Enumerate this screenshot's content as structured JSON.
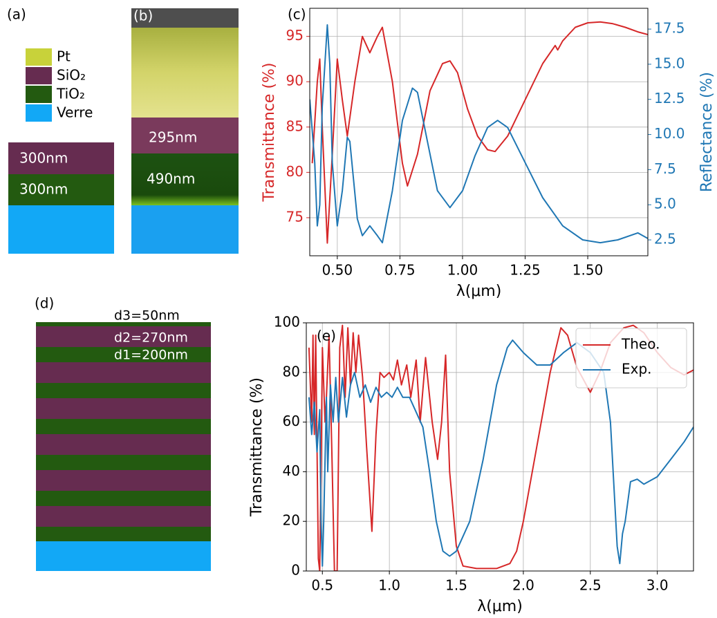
{
  "panel_a": {
    "label": "(a)",
    "legend": [
      {
        "name": "Pt",
        "color": "#c8d23a"
      },
      {
        "name": "SiO₂",
        "color": "#662c50"
      },
      {
        "name": "TiO₂",
        "color": "#235a10"
      },
      {
        "name": "Verre",
        "color": "#12a8f6"
      }
    ],
    "layers": [
      "300nm",
      "300nm"
    ]
  },
  "panel_b": {
    "label": "(b)",
    "layers": [
      "295nm",
      "490nm"
    ]
  },
  "panel_d": {
    "label": "(d)",
    "layers": [
      "d3=50nm",
      "d2=270nm",
      "d1=200nm"
    ]
  },
  "chart_data": [
    {
      "type": "line",
      "annotation": "(c)",
      "xlabel": "λ(μm)",
      "ylabel": "Transmittance (%)",
      "y2label": "Reflectance (%)",
      "grid": true,
      "xlim": [
        0.39,
        1.74
      ],
      "xticks": [
        {
          "value": 0.5,
          "label": "0.50"
        },
        0.75,
        {
          "value": 1.0,
          "label": "1.00"
        },
        1.25,
        {
          "value": 1.5,
          "label": "1.50"
        }
      ],
      "ylim": [
        70.8,
        98.1
      ],
      "yticks": [
        75,
        80,
        85,
        90,
        95
      ],
      "y2lim": [
        1.37,
        18.98
      ],
      "y2ticks": [
        2.5,
        {
          "value": 5.0,
          "label": "5.0"
        },
        7.5,
        {
          "value": 10.0,
          "label": "10.0"
        },
        12.5,
        {
          "value": 15.0,
          "label": "15.0"
        },
        17.5
      ],
      "series": [
        {
          "name": "Transmittance",
          "color": "#d62728",
          "x": [
            0.4,
            0.42,
            0.43,
            0.44,
            0.46,
            0.48,
            0.5,
            0.52,
            0.54,
            0.57,
            0.6,
            0.63,
            0.66,
            0.68,
            0.72,
            0.76,
            0.78,
            0.82,
            0.87,
            0.92,
            0.95,
            0.98,
            1.02,
            1.06,
            1.1,
            1.13,
            1.18,
            1.25,
            1.32,
            1.37,
            1.38,
            1.4,
            1.45,
            1.5,
            1.55,
            1.6,
            1.65,
            1.7,
            1.74
          ],
          "values": [
            81,
            90,
            92.5,
            85,
            72.2,
            82,
            92.5,
            88,
            84,
            90,
            95,
            93.2,
            95,
            96,
            90,
            81,
            78.5,
            82,
            89,
            92,
            92.3,
            91,
            87,
            84,
            82.5,
            82.3,
            84,
            88,
            92,
            94,
            93.5,
            94.5,
            96,
            96.5,
            96.6,
            96.4,
            96,
            95.5,
            95.2
          ]
        },
        {
          "name": "Reflectance",
          "color": "#1f77b4",
          "axis": "y2",
          "x": [
            0.39,
            0.41,
            0.42,
            0.43,
            0.44,
            0.46,
            0.47,
            0.48,
            0.5,
            0.52,
            0.54,
            0.55,
            0.58,
            0.6,
            0.63,
            0.66,
            0.68,
            0.72,
            0.76,
            0.8,
            0.82,
            0.86,
            0.9,
            0.95,
            1.0,
            1.05,
            1.1,
            1.14,
            1.18,
            1.25,
            1.32,
            1.4,
            1.48,
            1.55,
            1.62,
            1.7,
            1.74
          ],
          "values": [
            12.5,
            8,
            3.5,
            5,
            12,
            17.8,
            15,
            8,
            3.5,
            6,
            9.8,
            9.5,
            4,
            2.8,
            3.5,
            2.8,
            2.3,
            6,
            11,
            13.3,
            13,
            9.5,
            6,
            4.8,
            6,
            8.5,
            10.5,
            11,
            10.5,
            8,
            5.5,
            3.5,
            2.5,
            2.3,
            2.5,
            3,
            2.6
          ]
        }
      ]
    },
    {
      "type": "line",
      "annotation": "(e)",
      "xlabel": "λ(μm)",
      "ylabel": "Transmittance (%)",
      "grid": true,
      "legend": "upper right",
      "xlim": [
        0.38,
        3.27
      ],
      "xticks": [
        0.5,
        {
          "value": 1.0,
          "label": "1.0"
        },
        1.5,
        {
          "value": 2.0,
          "label": "2.0"
        },
        2.5,
        {
          "value": 3.0,
          "label": "3.0"
        }
      ],
      "ylim": [
        0,
        100
      ],
      "yticks": [
        0,
        20,
        40,
        60,
        80,
        100
      ],
      "series": [
        {
          "name": "Theo.",
          "color": "#d62728",
          "x": [
            0.4,
            0.42,
            0.43,
            0.44,
            0.45,
            0.47,
            0.48,
            0.49,
            0.5,
            0.52,
            0.53,
            0.55,
            0.57,
            0.59,
            0.61,
            0.63,
            0.65,
            0.67,
            0.69,
            0.71,
            0.73,
            0.75,
            0.77,
            0.8,
            0.83,
            0.87,
            0.9,
            0.93,
            0.96,
            1.0,
            1.03,
            1.06,
            1.09,
            1.13,
            1.16,
            1.2,
            1.23,
            1.27,
            1.32,
            1.36,
            1.39,
            1.42,
            1.45,
            1.5,
            1.55,
            1.65,
            1.8,
            1.9,
            1.95,
            2.0,
            2.1,
            2.2,
            2.28,
            2.33,
            2.4,
            2.5,
            2.57,
            2.65,
            2.75,
            2.82,
            2.9,
            3.0,
            3.1,
            3.2,
            3.27
          ],
          "values": [
            90,
            60,
            95,
            55,
            95,
            5,
            0,
            40,
            90,
            60,
            70,
            95,
            50,
            0,
            0,
            90,
            99,
            70,
            98,
            75,
            96,
            80,
            95,
            78,
            50,
            16,
            55,
            80,
            78,
            80,
            77,
            85,
            75,
            83,
            70,
            85,
            60,
            86,
            60,
            45,
            60,
            87,
            40,
            10,
            2,
            1,
            1,
            3,
            8,
            20,
            50,
            80,
            98,
            95,
            82,
            72,
            80,
            92,
            98,
            99,
            96,
            88,
            82,
            79,
            81
          ]
        },
        {
          "name": "Exp.",
          "color": "#1f77b4",
          "x": [
            0.4,
            0.42,
            0.44,
            0.46,
            0.48,
            0.49,
            0.5,
            0.51,
            0.53,
            0.54,
            0.56,
            0.58,
            0.6,
            0.62,
            0.65,
            0.68,
            0.71,
            0.74,
            0.78,
            0.82,
            0.86,
            0.9,
            0.94,
            0.98,
            1.02,
            1.06,
            1.1,
            1.15,
            1.2,
            1.25,
            1.3,
            1.35,
            1.4,
            1.45,
            1.5,
            1.6,
            1.7,
            1.8,
            1.88,
            1.92,
            2.0,
            2.1,
            2.2,
            2.3,
            2.4,
            2.5,
            2.6,
            2.65,
            2.7,
            2.72,
            2.74,
            2.76,
            2.8,
            2.85,
            2.9,
            3.0,
            3.1,
            3.2,
            3.27
          ],
          "values": [
            70,
            55,
            68,
            48,
            65,
            20,
            2,
            20,
            70,
            40,
            75,
            60,
            78,
            60,
            78,
            62,
            75,
            80,
            70,
            75,
            68,
            74,
            70,
            72,
            70,
            74,
            70,
            70,
            64,
            58,
            40,
            20,
            8,
            6,
            8,
            20,
            45,
            75,
            90,
            93,
            88,
            83,
            83,
            88,
            92,
            88,
            80,
            60,
            10,
            3,
            15,
            20,
            36,
            37,
            35,
            38,
            45,
            52,
            58
          ]
        }
      ]
    }
  ]
}
